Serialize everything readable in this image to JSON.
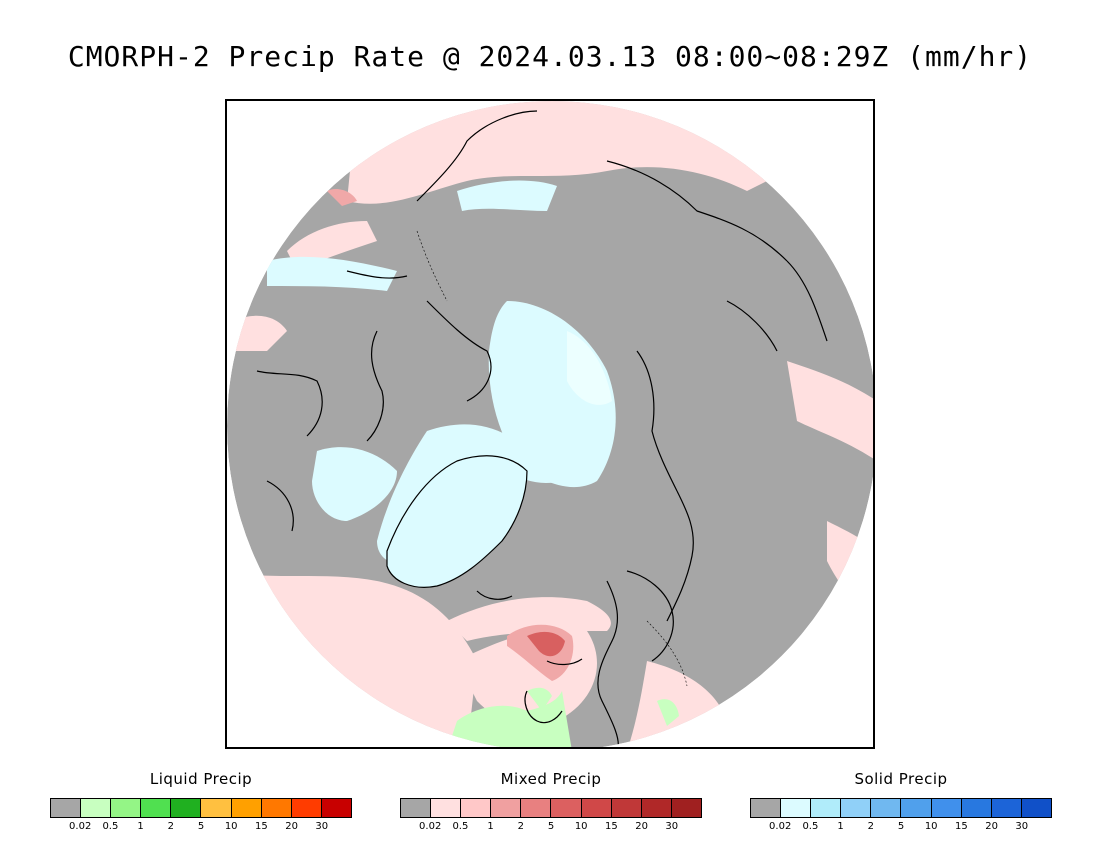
{
  "title": "CMORPH-2 Precip Rate @ 2024.03.13 08:00~08:29Z (mm/hr)",
  "map": {
    "background_color": "#a6a6a6",
    "colors": {
      "no_precip": "#a6a6a6",
      "light_mixed": "#ffe0e0",
      "light_solid": "#dcfbff",
      "light_liquid": "#c8ffc0",
      "mixed_moderate": "#f0a8a8",
      "mixed_heavy": "#d86060",
      "coastline": "#000000"
    }
  },
  "legends": [
    {
      "title": "Liquid Precip",
      "colors": [
        "#a6a6a6",
        "#c8ffc0",
        "#94f586",
        "#50e050",
        "#20b020",
        "#ffc040",
        "#ffa000",
        "#ff7800",
        "#ff3c00",
        "#c80000"
      ],
      "labels": [
        "0.02",
        "0.5",
        "1",
        "2",
        "5",
        "10",
        "15",
        "20",
        "30"
      ]
    },
    {
      "title": "Mixed Precip",
      "colors": [
        "#a6a6a6",
        "#ffe0e0",
        "#ffc8c8",
        "#f0a0a0",
        "#e88080",
        "#dc6060",
        "#d04848",
        "#c03838",
        "#b02828",
        "#a02020"
      ],
      "labels": [
        "0.02",
        "0.5",
        "1",
        "2",
        "5",
        "10",
        "15",
        "20",
        "30"
      ]
    },
    {
      "title": "Solid Precip",
      "colors": [
        "#a6a6a6",
        "#dcfbff",
        "#b0ecfa",
        "#90d0f8",
        "#70b8f0",
        "#50a0ec",
        "#4090ec",
        "#2878e0",
        "#1c64d8",
        "#1050c8"
      ],
      "labels": [
        "0.02",
        "0.5",
        "1",
        "2",
        "5",
        "10",
        "15",
        "20",
        "30"
      ]
    }
  ]
}
